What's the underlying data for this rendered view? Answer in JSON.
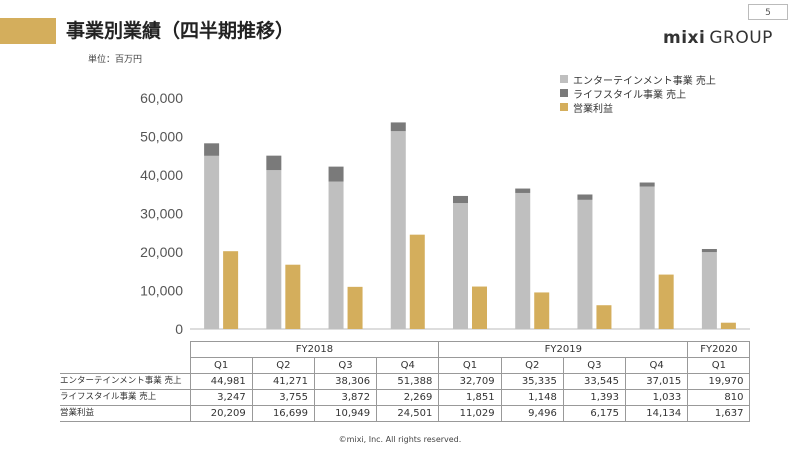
{
  "header": {
    "title": "事業別業績（四半期推移）",
    "unit": "単位：百万円",
    "page_number": "5",
    "logo_brand": "mixi",
    "logo_suffix": "GROUP"
  },
  "colors": {
    "accent": "#d4ae5c",
    "entertainment": "#bfbfbf",
    "lifestyle": "#7a7a7a",
    "operating_profit": "#d4ae5c"
  },
  "chart_data": {
    "type": "bar",
    "periods": [
      {
        "fy": "FY2018",
        "quarters": [
          "Q1",
          "Q2",
          "Q3",
          "Q4"
        ]
      },
      {
        "fy": "FY2019",
        "quarters": [
          "Q1",
          "Q2",
          "Q3",
          "Q4"
        ]
      },
      {
        "fy": "FY2020",
        "quarters": [
          "Q1"
        ]
      }
    ],
    "categories": [
      "FY2018 Q1",
      "FY2018 Q2",
      "FY2018 Q3",
      "FY2018 Q4",
      "FY2019 Q1",
      "FY2019 Q2",
      "FY2019 Q3",
      "FY2019 Q4",
      "FY2020 Q1"
    ],
    "series": [
      {
        "name": "エンターテインメント事業 売上",
        "stack": "sales",
        "color": "#bfbfbf",
        "values": [
          "44,981",
          "41,271",
          "38,306",
          "51,388",
          "32,709",
          "35,335",
          "33,545",
          "37,015",
          "19,970"
        ]
      },
      {
        "name": "ライフスタイル事業 売上",
        "stack": "sales",
        "color": "#7a7a7a",
        "values": [
          "3,247",
          "3,755",
          "3,872",
          "2,269",
          "1,851",
          "1,148",
          "1,393",
          "1,033",
          "810"
        ]
      },
      {
        "name": "営業利益",
        "stack": "profit",
        "color": "#d4ae5c",
        "values": [
          "20,209",
          "16,699",
          "10,949",
          "24,501",
          "11,029",
          "9,496",
          "6,175",
          "14,134",
          "1,637"
        ]
      }
    ],
    "y_ticks": [
      "60,000",
      "50,000",
      "40,000",
      "30,000",
      "20,000",
      "10,000",
      "0"
    ],
    "ylim": [
      0,
      60000
    ],
    "legend_order": [
      "エンターテインメント事業 売上",
      "ライフスタイル事業 売上",
      "営業利益"
    ],
    "legend_position": "top-right"
  },
  "table": {
    "row_labels": [
      "エンターテインメント事業 売上",
      "ライフスタイル事業 売上",
      "営業利益"
    ]
  },
  "footer": {
    "copyright": "©mixi, Inc. All rights reserved."
  }
}
